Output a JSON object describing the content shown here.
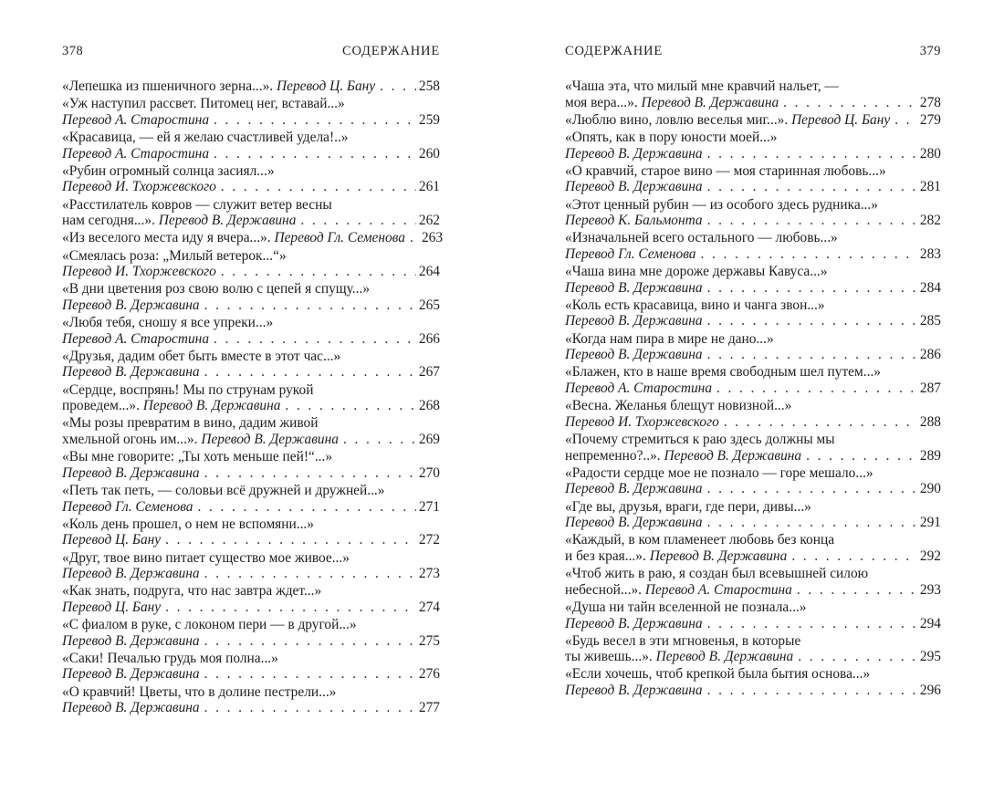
{
  "pages": {
    "left": {
      "page_number": "378",
      "header": "СОДЕРЖАНИЕ",
      "entries": [
        {
          "lines": [
            [
              {
                "t": "«Лепешка из пшеничного зерна...». ",
                "it": false
              },
              {
                "t": "Перевод Ц. Бану",
                "it": true
              }
            ]
          ],
          "page": "258"
        },
        {
          "lines": [
            [
              {
                "t": "«Уж наступил рассвет. Питомец нег, вставай...»",
                "it": false
              }
            ],
            [
              {
                "t": "Перевод А. Старостина",
                "it": true
              }
            ]
          ],
          "page": "259"
        },
        {
          "lines": [
            [
              {
                "t": "«Красавица, — ей я желаю счастливей удела!..»",
                "it": false
              }
            ],
            [
              {
                "t": "Перевод А. Старостина",
                "it": true
              }
            ]
          ],
          "page": "260"
        },
        {
          "lines": [
            [
              {
                "t": "«Рубин огромный солнца засиял...»",
                "it": false
              }
            ],
            [
              {
                "t": "Перевод И. Тхоржевского",
                "it": true
              }
            ]
          ],
          "page": "261"
        },
        {
          "lines": [
            [
              {
                "t": "«Расстилатель ковров — служит ветер весны",
                "it": false
              }
            ],
            [
              {
                "t": "нам сегодня...». ",
                "it": false
              },
              {
                "t": "Перевод В. Державина",
                "it": true
              }
            ]
          ],
          "page": "262"
        },
        {
          "lines": [
            [
              {
                "t": "«Из веселого места иду я вчера...». ",
                "it": false
              },
              {
                "t": "Перевод Гл. Семенова",
                "it": true
              }
            ]
          ],
          "page": "263"
        },
        {
          "lines": [
            [
              {
                "t": "«Смеялась роза: „Милый ветерок...“»",
                "it": false
              }
            ],
            [
              {
                "t": "Перевод И. Тхоржевского",
                "it": true
              }
            ]
          ],
          "page": "264"
        },
        {
          "lines": [
            [
              {
                "t": "«В дни цветения роз свою волю с цепей я спущу...»",
                "it": false
              }
            ],
            [
              {
                "t": "Перевод В. Державина",
                "it": true
              }
            ]
          ],
          "page": "265"
        },
        {
          "lines": [
            [
              {
                "t": "«Любя тебя, сношу я все упреки...»",
                "it": false
              }
            ],
            [
              {
                "t": "Перевод А. Старостина",
                "it": true
              }
            ]
          ],
          "page": "266"
        },
        {
          "lines": [
            [
              {
                "t": "«Друзья, дадим обет быть вместе в этот час...»",
                "it": false
              }
            ],
            [
              {
                "t": "Перевод В. Державина",
                "it": true
              }
            ]
          ],
          "page": "267"
        },
        {
          "lines": [
            [
              {
                "t": "«Сердце, воспрянь! Мы по струнам рукой",
                "it": false
              }
            ],
            [
              {
                "t": "проведем...». ",
                "it": false
              },
              {
                "t": "Перевод В. Державина",
                "it": true
              }
            ]
          ],
          "page": "268"
        },
        {
          "lines": [
            [
              {
                "t": "«Мы розы превратим в вино, дадим живой",
                "it": false
              }
            ],
            [
              {
                "t": "хмельной огонь им...». ",
                "it": false
              },
              {
                "t": "Перевод В. Державина",
                "it": true
              }
            ]
          ],
          "page": "269"
        },
        {
          "lines": [
            [
              {
                "t": "«Вы мне говорите: „Ты хоть меньше пей!“...»",
                "it": false
              }
            ],
            [
              {
                "t": "Перевод В. Державина",
                "it": true
              }
            ]
          ],
          "page": "270"
        },
        {
          "lines": [
            [
              {
                "t": "«Петь так петь, — соловьи всё дружней и дружней...»",
                "it": false
              }
            ],
            [
              {
                "t": "Перевод Гл. Семенова",
                "it": true
              }
            ]
          ],
          "page": "271"
        },
        {
          "lines": [
            [
              {
                "t": "«Коль день прошел, о нем не вспомяни...»",
                "it": false
              }
            ],
            [
              {
                "t": "Перевод Ц. Бану",
                "it": true
              }
            ]
          ],
          "page": "272"
        },
        {
          "lines": [
            [
              {
                "t": "«Друг, твое вино питает существо мое живое...»",
                "it": false
              }
            ],
            [
              {
                "t": "Перевод В. Державина",
                "it": true
              }
            ]
          ],
          "page": "273"
        },
        {
          "lines": [
            [
              {
                "t": "«Как знать, подруга, что нас завтра ждет...»",
                "it": false
              }
            ],
            [
              {
                "t": "Перевод Ц. Бану",
                "it": true
              }
            ]
          ],
          "page": "274"
        },
        {
          "lines": [
            [
              {
                "t": "«С фиалом в руке, с локоном пери — в другой...»",
                "it": false
              }
            ],
            [
              {
                "t": "Перевод В. Державина",
                "it": true
              }
            ]
          ],
          "page": "275"
        },
        {
          "lines": [
            [
              {
                "t": "«Саки! Печалью грудь моя полна...»",
                "it": false
              }
            ],
            [
              {
                "t": "Перевод В. Державина",
                "it": true
              }
            ]
          ],
          "page": "276"
        },
        {
          "lines": [
            [
              {
                "t": "«О кравчий! Цветы, что в долине пестрели...»",
                "it": false
              }
            ],
            [
              {
                "t": "Перевод В. Державина",
                "it": true
              }
            ]
          ],
          "page": "277"
        }
      ]
    },
    "right": {
      "page_number": "379",
      "header": "СОДЕРЖАНИЕ",
      "entries": [
        {
          "lines": [
            [
              {
                "t": "«Чаша эта, что милый мне кравчий нальет, —",
                "it": false
              }
            ],
            [
              {
                "t": "моя вера...». ",
                "it": false
              },
              {
                "t": "Перевод В. Державина",
                "it": true
              }
            ]
          ],
          "page": "278"
        },
        {
          "lines": [
            [
              {
                "t": "«Люблю вино, ловлю веселья миг...». ",
                "it": false
              },
              {
                "t": "Перевод Ц. Бану",
                "it": true
              }
            ]
          ],
          "page": "279"
        },
        {
          "lines": [
            [
              {
                "t": "«Опять, как в пору юности моей...»",
                "it": false
              }
            ],
            [
              {
                "t": "Перевод В. Державина",
                "it": true
              }
            ]
          ],
          "page": "280"
        },
        {
          "lines": [
            [
              {
                "t": "«О кравчий, старое вино — моя старинная любовь...»",
                "it": false
              }
            ],
            [
              {
                "t": "Перевод В. Державина",
                "it": true
              }
            ]
          ],
          "page": "281"
        },
        {
          "lines": [
            [
              {
                "t": "«Этот ценный рубин — из особого здесь рудника...»",
                "it": false
              }
            ],
            [
              {
                "t": "Перевод К. Бальмонта",
                "it": true
              }
            ]
          ],
          "page": "282"
        },
        {
          "lines": [
            [
              {
                "t": "«Изначальней всего остального — любовь...»",
                "it": false
              }
            ],
            [
              {
                "t": "Перевод Гл. Семенова",
                "it": true
              }
            ]
          ],
          "page": "283"
        },
        {
          "lines": [
            [
              {
                "t": "«Чаша вина мне дороже державы Кавуса...»",
                "it": false
              }
            ],
            [
              {
                "t": "Перевод В. Державина",
                "it": true
              }
            ]
          ],
          "page": "284"
        },
        {
          "lines": [
            [
              {
                "t": "«Коль есть красавица, вино и чанга звон...»",
                "it": false
              }
            ],
            [
              {
                "t": "Перевод В. Державина",
                "it": true
              }
            ]
          ],
          "page": "285"
        },
        {
          "lines": [
            [
              {
                "t": "«Когда нам пира в мире не дано...»",
                "it": false
              }
            ],
            [
              {
                "t": "Перевод В. Державина",
                "it": true
              }
            ]
          ],
          "page": "286"
        },
        {
          "lines": [
            [
              {
                "t": "«Блажен, кто в наше время свободным шел путем...»",
                "it": false
              }
            ],
            [
              {
                "t": "Перевод А. Старостина",
                "it": true
              }
            ]
          ],
          "page": "287"
        },
        {
          "lines": [
            [
              {
                "t": "«Весна. Желанья блещут новизной...»",
                "it": false
              }
            ],
            [
              {
                "t": "Перевод И. Тхоржевского",
                "it": true
              }
            ]
          ],
          "page": "288"
        },
        {
          "lines": [
            [
              {
                "t": "«Почему стремиться к раю здесь должны мы",
                "it": false
              }
            ],
            [
              {
                "t": "непременно?..». ",
                "it": false
              },
              {
                "t": "Перевод В. Державина",
                "it": true
              }
            ]
          ],
          "page": "289"
        },
        {
          "lines": [
            [
              {
                "t": "«Радости сердце мое не познало — горе мешало...»",
                "it": false
              }
            ],
            [
              {
                "t": "Перевод В. Державина",
                "it": true
              }
            ]
          ],
          "page": "290"
        },
        {
          "lines": [
            [
              {
                "t": "«Где вы, друзья, враги, где пери, дивы...»",
                "it": false
              }
            ],
            [
              {
                "t": "Перевод В. Державина",
                "it": true
              }
            ]
          ],
          "page": "291"
        },
        {
          "lines": [
            [
              {
                "t": "«Каждый, в ком пламенеет любовь без конца",
                "it": false
              }
            ],
            [
              {
                "t": "и без края...». ",
                "it": false
              },
              {
                "t": "Перевод В. Державина",
                "it": true
              }
            ]
          ],
          "page": "292"
        },
        {
          "lines": [
            [
              {
                "t": "«Чтоб жить в раю, я создан был всевышней силою",
                "it": false
              }
            ],
            [
              {
                "t": "небесной...». ",
                "it": false
              },
              {
                "t": "Перевод А. Старостина",
                "it": true
              }
            ]
          ],
          "page": "293"
        },
        {
          "lines": [
            [
              {
                "t": "«Душа ни тайн вселенной не познала...»",
                "it": false
              }
            ],
            [
              {
                "t": "Перевод В. Державина",
                "it": true
              }
            ]
          ],
          "page": "294"
        },
        {
          "lines": [
            [
              {
                "t": "«Будь весел в эти мгновенья, в которые",
                "it": false
              }
            ],
            [
              {
                "t": "ты живешь...». ",
                "it": false
              },
              {
                "t": "Перевод В. Державина",
                "it": true
              }
            ]
          ],
          "page": "295"
        },
        {
          "lines": [
            [
              {
                "t": "«Если хочешь, чтоб крепкой была бытия основа...»",
                "it": false
              }
            ],
            [
              {
                "t": "Перевод В. Державина",
                "it": true
              }
            ]
          ],
          "page": "296"
        }
      ]
    }
  }
}
